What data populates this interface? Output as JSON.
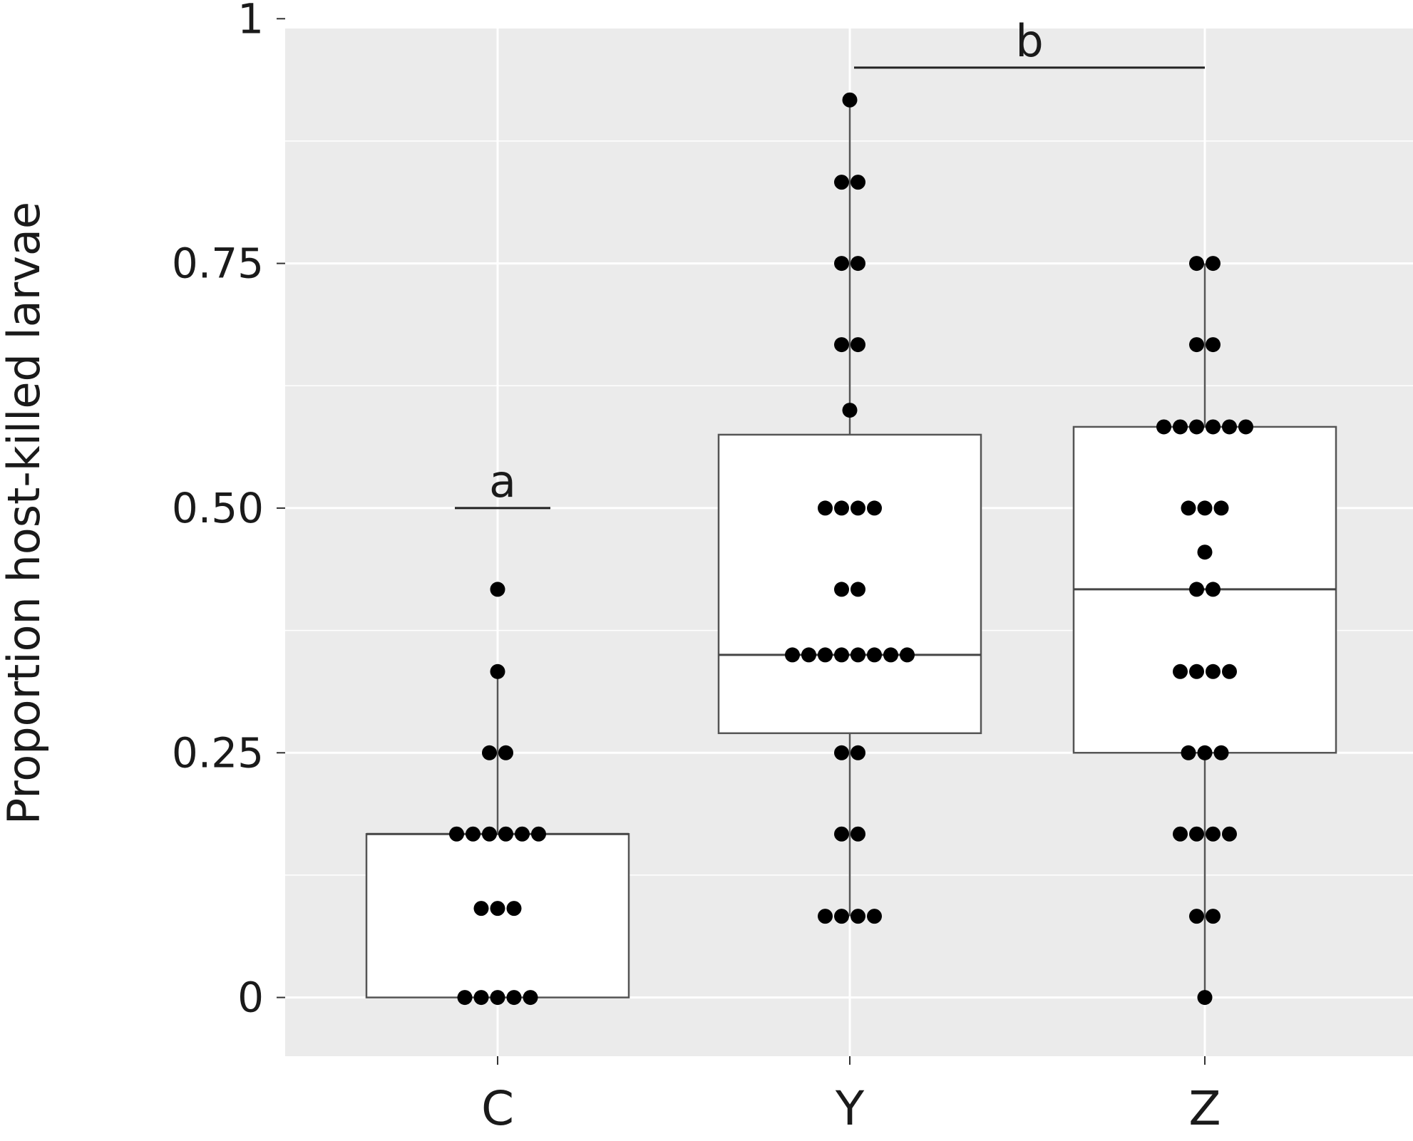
{
  "chart_data": {
    "type": "boxplot",
    "ylabel": "Proportion host-killed larvae",
    "xlabel": "",
    "ylim": [
      -0.06,
      0.99
    ],
    "yticks": [
      0,
      0.25,
      0.5,
      0.75,
      1
    ],
    "ytick_labels": [
      "0",
      "0.25",
      "0.50",
      "0.75",
      "1"
    ],
    "categories": [
      "C",
      "Y",
      "Z"
    ],
    "grid": true,
    "boxes": [
      {
        "category": "C",
        "whisker_low": 0,
        "q1": 0,
        "median": 0.167,
        "q3": 0.167,
        "whisker_high": 0.333
      },
      {
        "category": "Y",
        "whisker_low": 0.083,
        "q1": 0.27,
        "median": 0.35,
        "q3": 0.575,
        "whisker_high": 0.917
      },
      {
        "category": "Z",
        "whisker_low": 0,
        "q1": 0.25,
        "median": 0.417,
        "q3": 0.583,
        "whisker_high": 0.75
      }
    ],
    "points": [
      {
        "category": "C",
        "y": 0.417,
        "count": 1
      },
      {
        "category": "C",
        "y": 0.333,
        "count": 1
      },
      {
        "category": "C",
        "y": 0.25,
        "count": 2
      },
      {
        "category": "C",
        "y": 0.167,
        "count": 6
      },
      {
        "category": "C",
        "y": 0.091,
        "count": 3
      },
      {
        "category": "C",
        "y": 0,
        "count": 5
      },
      {
        "category": "Y",
        "y": 0.917,
        "count": 1
      },
      {
        "category": "Y",
        "y": 0.833,
        "count": 2
      },
      {
        "category": "Y",
        "y": 0.75,
        "count": 2
      },
      {
        "category": "Y",
        "y": 0.667,
        "count": 2
      },
      {
        "category": "Y",
        "y": 0.6,
        "count": 1
      },
      {
        "category": "Y",
        "y": 0.5,
        "count": 4
      },
      {
        "category": "Y",
        "y": 0.417,
        "count": 2
      },
      {
        "category": "Y",
        "y": 0.35,
        "count": 8
      },
      {
        "category": "Y",
        "y": 0.25,
        "count": 2
      },
      {
        "category": "Y",
        "y": 0.167,
        "count": 2
      },
      {
        "category": "Y",
        "y": 0.083,
        "count": 4
      },
      {
        "category": "Z",
        "y": 0.75,
        "count": 2
      },
      {
        "category": "Z",
        "y": 0.667,
        "count": 2
      },
      {
        "category": "Z",
        "y": 0.583,
        "count": 6
      },
      {
        "category": "Z",
        "y": 0.5,
        "count": 3
      },
      {
        "category": "Z",
        "y": 0.455,
        "count": 1
      },
      {
        "category": "Z",
        "y": 0.417,
        "count": 2
      },
      {
        "category": "Z",
        "y": 0.333,
        "count": 4
      },
      {
        "category": "Z",
        "y": 0.25,
        "count": 3
      },
      {
        "category": "Z",
        "y": 0.167,
        "count": 4
      },
      {
        "category": "Z",
        "y": 0.083,
        "count": 2
      },
      {
        "category": "Z",
        "y": 0,
        "count": 1
      }
    ],
    "significance": [
      {
        "label": "a",
        "from": "C",
        "to": "C",
        "y": 0.5
      },
      {
        "label": "b",
        "from": "Y",
        "to": "Z",
        "y": 0.95
      }
    ],
    "colors": {
      "panel_background": "#ebebeb",
      "grid": "#ffffff",
      "box_fill": "#ffffff",
      "box_stroke": "#555555",
      "point": "#000000"
    }
  }
}
